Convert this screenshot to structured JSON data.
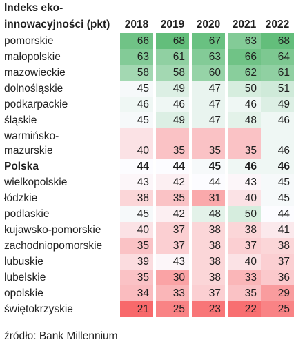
{
  "chart_data": {
    "type": "heatmap",
    "title_lines": [
      "Indeks eko-",
      "innowacyjności (pkt)"
    ],
    "columns": [
      "2018",
      "2019",
      "2020",
      "2021",
      "2022"
    ],
    "rows": [
      {
        "label": "pomorskie",
        "values": [
          66,
          68,
          67,
          63,
          68
        ]
      },
      {
        "label": "małopolskie",
        "values": [
          63,
          61,
          63,
          66,
          64
        ]
      },
      {
        "label": "mazowieckie",
        "values": [
          58,
          58,
          60,
          62,
          61
        ]
      },
      {
        "label": "dolnośląskie",
        "values": [
          45,
          49,
          47,
          50,
          51
        ]
      },
      {
        "label": "podkarpackie",
        "values": [
          46,
          46,
          47,
          46,
          49
        ]
      },
      {
        "label": "śląskie",
        "values": [
          45,
          49,
          47,
          48,
          46
        ]
      },
      {
        "label_lines": [
          "warmińsko-",
          "mazurskie"
        ],
        "values": [
          40,
          35,
          35,
          35,
          46
        ]
      },
      {
        "label": "Polska",
        "values": [
          44,
          44,
          45,
          46,
          46
        ],
        "bold": true
      },
      {
        "label": "wielkopolskie",
        "values": [
          43,
          42,
          44,
          43,
          45
        ]
      },
      {
        "label": "łódzkie",
        "values": [
          38,
          35,
          31,
          40,
          45
        ]
      },
      {
        "label": "podlaskie",
        "values": [
          45,
          42,
          48,
          50,
          44
        ]
      },
      {
        "label": "kujawsko-pomorskie",
        "values": [
          40,
          37,
          38,
          38,
          41
        ]
      },
      {
        "label": "zachodniopomorskie",
        "values": [
          35,
          37,
          38,
          37,
          38
        ]
      },
      {
        "label": "lubuskie",
        "values": [
          39,
          43,
          38,
          40,
          37
        ]
      },
      {
        "label": "lubelskie",
        "values": [
          35,
          30,
          38,
          33,
          36
        ]
      },
      {
        "label": "opolskie",
        "values": [
          34,
          33,
          37,
          35,
          29
        ]
      },
      {
        "label": "świętokrzyskie",
        "values": [
          21,
          25,
          23,
          22,
          25
        ]
      }
    ],
    "color_scale": {
      "low": "#f8696b",
      "mid": "#fcfcff",
      "high": "#63be7b"
    }
  },
  "source": "źródło: Bank Millennium"
}
